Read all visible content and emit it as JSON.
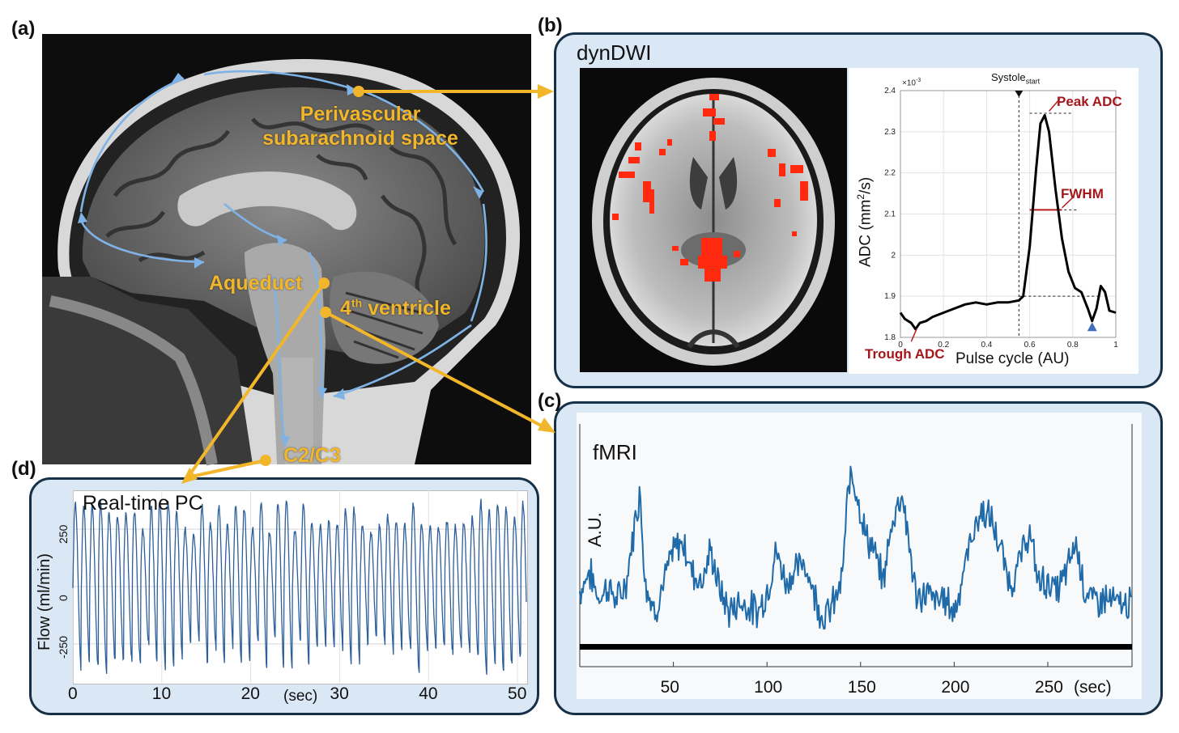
{
  "panels": {
    "a": "(a)",
    "b": "(b)",
    "c": "(c)",
    "d": "(d)"
  },
  "mri_labels": {
    "perivascular_line1": "Perivascular",
    "perivascular_line2": "subarachnoid space",
    "aqueduct": "Aqueduct",
    "ventricle_sup": "th",
    "ventricle_num": "4",
    "ventricle_word": " ventricle",
    "c2c3": "C2/C3"
  },
  "dyndwi": {
    "title": "dynDWI",
    "chart_data": {
      "type": "line",
      "xlabel": "Pulse cycle (AU)",
      "ylabel": "ADC (mm²/s)",
      "ylabel_main": "ADC (mm",
      "ylabel_sup": "2",
      "ylabel_end": "/s)",
      "y_multiplier": "×10",
      "y_multiplier_exp": "-3",
      "xlim": [
        0,
        1
      ],
      "ylim": [
        1.8,
        2.4
      ],
      "x_ticks": [
        "0",
        "0.2",
        "0.4",
        "0.6",
        "0.8",
        "1"
      ],
      "y_ticks": [
        "1.8",
        "1.9",
        "2",
        "2.1",
        "2.2",
        "2.3",
        "2.4"
      ],
      "x": [
        0,
        0.02,
        0.05,
        0.07,
        0.09,
        0.12,
        0.15,
        0.2,
        0.25,
        0.3,
        0.35,
        0.4,
        0.45,
        0.5,
        0.55,
        0.57,
        0.6,
        0.63,
        0.65,
        0.67,
        0.69,
        0.72,
        0.75,
        0.78,
        0.81,
        0.84,
        0.87,
        0.89,
        0.91,
        0.93,
        0.95,
        0.97,
        1.0
      ],
      "y": [
        1.86,
        1.845,
        1.835,
        1.82,
        1.835,
        1.84,
        1.85,
        1.86,
        1.87,
        1.88,
        1.885,
        1.88,
        1.885,
        1.885,
        1.89,
        1.9,
        2.02,
        2.21,
        2.32,
        2.34,
        2.3,
        2.16,
        2.04,
        1.96,
        1.92,
        1.91,
        1.87,
        1.84,
        1.87,
        1.925,
        1.91,
        1.865,
        1.86
      ],
      "annotations": {
        "systole": "Systole",
        "systole_sub": "start",
        "peak": "Peak ADC",
        "fwhm": "FWHM",
        "trough": "Trough ADC"
      },
      "systole_x": 0.55,
      "peak_y": 2.345,
      "fwhm_y": 2.11,
      "fwhm_x": [
        0.6,
        0.75
      ],
      "baseline_y": 1.9,
      "marker_x": 0.89,
      "marker_y": 1.825
    }
  },
  "fmri": {
    "title": "fMRI",
    "chart_data": {
      "type": "line",
      "ylabel": "A.U.",
      "xunit": "(sec)",
      "xlim": [
        0,
        295
      ],
      "x_ticks": [
        "50",
        "100",
        "150",
        "200",
        "250"
      ],
      "keyframes_x": [
        0,
        5,
        10,
        15,
        20,
        25,
        28,
        32,
        35,
        40,
        45,
        50,
        55,
        60,
        65,
        70,
        75,
        80,
        85,
        90,
        95,
        100,
        105,
        110,
        115,
        120,
        125,
        130,
        135,
        140,
        143,
        145,
        148,
        152,
        157,
        162,
        167,
        172,
        175,
        180,
        185,
        190,
        195,
        200,
        205,
        210,
        215,
        220,
        225,
        230,
        235,
        240,
        245,
        250,
        255,
        260,
        265,
        270,
        275,
        280,
        285,
        290,
        295
      ],
      "keyframes_y": [
        0.25,
        0.35,
        0.22,
        0.28,
        0.2,
        0.3,
        0.5,
        0.75,
        0.3,
        0.15,
        0.3,
        0.45,
        0.5,
        0.35,
        0.3,
        0.45,
        0.25,
        0.15,
        0.2,
        0.18,
        0.15,
        0.25,
        0.45,
        0.3,
        0.35,
        0.4,
        0.25,
        0.12,
        0.18,
        0.3,
        0.7,
        0.85,
        0.75,
        0.55,
        0.45,
        0.3,
        0.6,
        0.75,
        0.55,
        0.2,
        0.25,
        0.2,
        0.22,
        0.15,
        0.35,
        0.55,
        0.65,
        0.6,
        0.45,
        0.28,
        0.4,
        0.55,
        0.3,
        0.3,
        0.25,
        0.35,
        0.5,
        0.25,
        0.2,
        0.22,
        0.2,
        0.18,
        0.2
      ]
    }
  },
  "realtime_pc": {
    "title": "Real-time PC",
    "chart_data": {
      "type": "line",
      "xlabel": "(sec)",
      "ylabel": "Flow (ml/min)",
      "xlim": [
        0,
        51
      ],
      "ylim": [
        -420,
        420
      ],
      "x_ticks": [
        "0",
        "10",
        "20",
        "30",
        "40",
        "50"
      ],
      "y_ticks": [
        "250",
        "0",
        "-250"
      ],
      "cycle_period_sec": 0.95,
      "amplitude": 330
    }
  }
}
